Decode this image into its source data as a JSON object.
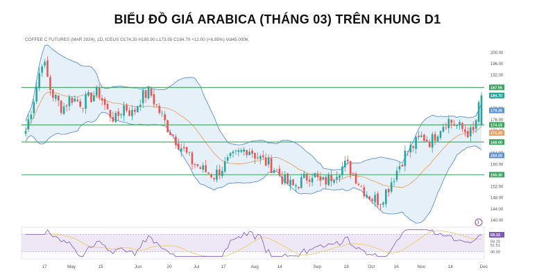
{
  "page_title": "BIỂU ĐỒ GIÁ ARABICA (THÁNG 03) TRÊN KHUNG D1",
  "colors": {
    "up": "#26a69a",
    "down": "#ef5350",
    "band_line": "#5b8fd6",
    "band_fill": "#dcebf7",
    "ma": "#e8a060",
    "level": "#3aa55d",
    "rsi_line": "#7e57c2",
    "rsi_band": "#ede7f6",
    "rsi_ma": "#f2c94c",
    "axis_text": "#555555",
    "current_tag": "#26a69a"
  },
  "chart_data": {
    "type": "candlestick",
    "title": "BIỂU ĐỒ GIÁ ARABICA (THÁNG 03) TRÊN KHUNG D1",
    "symbol_info": "COFFEE C FUTURES (MAR 2024), 1D, ICEUS  O174.20 H185.90 L173.55 C184.70 +12.00 (+6.95%)  Vol45.000K",
    "ylim": [
      139,
      203
    ],
    "y_ticks": [
      140,
      144,
      148,
      152,
      156,
      160,
      164,
      168,
      172,
      176,
      180,
      184,
      188,
      192,
      196,
      200
    ],
    "y_tick_labels": [
      "140.00",
      "144.00",
      "148.00",
      "152.00",
      "156.00",
      "160.00",
      "164.00",
      "168.00",
      "172.00",
      "176.00",
      "180.00",
      "184.00",
      "188.00",
      "192.00",
      "196.00",
      "200.00"
    ],
    "x_labels": [
      {
        "label": "17",
        "at": 0.055
      },
      {
        "label": "May",
        "at": 0.12
      },
      {
        "label": "15",
        "at": 0.19
      },
      {
        "label": "Jun",
        "at": 0.28
      },
      {
        "label": "20",
        "at": 0.355
      },
      {
        "label": "Jul",
        "at": 0.42
      },
      {
        "label": "17",
        "at": 0.485
      },
      {
        "label": "Aug",
        "at": 0.56
      },
      {
        "label": "14",
        "at": 0.62
      },
      {
        "label": "Sep",
        "at": 0.71
      },
      {
        "label": "18",
        "at": 0.78
      },
      {
        "label": "Oct",
        "at": 0.84
      },
      {
        "label": "16",
        "at": 0.9
      },
      {
        "label": "Nov",
        "at": 0.96
      },
      {
        "label": "14",
        "at": 1.03
      },
      {
        "label": "Dec",
        "at": 1.11
      }
    ],
    "price_path": [
      [
        0,
        172
      ],
      [
        6,
        184
      ],
      [
        12,
        198
      ],
      [
        18,
        186
      ],
      [
        26,
        180
      ],
      [
        32,
        184
      ],
      [
        40,
        182
      ],
      [
        46,
        184
      ],
      [
        52,
        186
      ],
      [
        58,
        179
      ],
      [
        64,
        176
      ],
      [
        70,
        181
      ],
      [
        76,
        178
      ],
      [
        82,
        184
      ],
      [
        88,
        186
      ],
      [
        94,
        180
      ],
      [
        100,
        174
      ],
      [
        108,
        168
      ],
      [
        118,
        161
      ],
      [
        126,
        158
      ],
      [
        134,
        156
      ],
      [
        140,
        159
      ],
      [
        146,
        162
      ],
      [
        152,
        164
      ],
      [
        158,
        166
      ],
      [
        164,
        163
      ],
      [
        170,
        161
      ],
      [
        176,
        159
      ],
      [
        184,
        154
      ],
      [
        190,
        152
      ],
      [
        196,
        154
      ],
      [
        204,
        157
      ],
      [
        210,
        153
      ],
      [
        216,
        155
      ],
      [
        222,
        158
      ],
      [
        228,
        160
      ],
      [
        234,
        156
      ],
      [
        240,
        151
      ],
      [
        246,
        148
      ],
      [
        252,
        147
      ],
      [
        258,
        152
      ],
      [
        264,
        158
      ],
      [
        270,
        164
      ],
      [
        276,
        167
      ],
      [
        282,
        170
      ],
      [
        288,
        168
      ],
      [
        294,
        173
      ],
      [
        300,
        176
      ],
      [
        306,
        174
      ],
      [
        312,
        172
      ],
      [
        318,
        171
      ],
      [
        324,
        184.7
      ]
    ],
    "levels": [
      {
        "value": 187.55,
        "label": "187.55"
      },
      {
        "value": 174.15,
        "label": "174.15"
      },
      {
        "value": 168.0,
        "label": "168.00"
      },
      {
        "value": 156.3,
        "label": "156.30"
      }
    ],
    "axis_tags": [
      {
        "value": 184.7,
        "label": "184.70",
        "kind": "current"
      },
      {
        "value": 179.3,
        "label": "179.30",
        "kind": "band_upper"
      },
      {
        "value": 171.25,
        "label": "171.25",
        "kind": "ma"
      },
      {
        "value": 163.2,
        "label": "163.20",
        "kind": "band_lower"
      }
    ],
    "rsi": {
      "ylim": [
        30,
        80
      ],
      "tick_labels": [
        "66.51",
        "58.10",
        "51.51",
        "40.00"
      ],
      "tick_values": [
        66.51,
        58.1,
        51.51,
        40.0
      ],
      "current": 69.33,
      "current_label": "69.33",
      "band": [
        40,
        70
      ]
    },
    "grid": false,
    "legend": "none"
  }
}
